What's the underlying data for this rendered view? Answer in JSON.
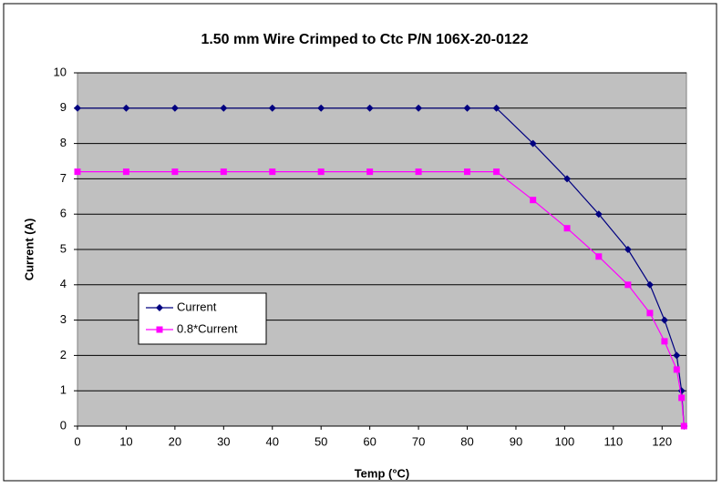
{
  "chart_data": {
    "type": "line",
    "title": "1.50 mm Wire Crimped to Ctc P/N 106X-20-0122",
    "x_label": "Temp (°C)",
    "y_label": "Current (A)",
    "x": [
      0,
      10,
      20,
      30,
      40,
      50,
      60,
      70,
      80,
      86,
      93.5,
      100.5,
      107,
      113,
      117.5,
      120.5,
      123,
      124,
      124.5
    ],
    "series": [
      {
        "name": "Current",
        "color": "#000080",
        "marker": "diamond",
        "values": [
          9,
          9,
          9,
          9,
          9,
          9,
          9,
          9,
          9,
          9,
          8,
          7,
          6,
          5,
          4,
          3,
          2,
          1,
          0
        ]
      },
      {
        "name": "0.8*Current",
        "color": "#ff00ff",
        "marker": "square",
        "values": [
          7.2,
          7.2,
          7.2,
          7.2,
          7.2,
          7.2,
          7.2,
          7.2,
          7.2,
          7.2,
          6.4,
          5.6,
          4.8,
          4,
          3.2,
          2.4,
          1.6,
          0.8,
          0
        ]
      }
    ],
    "xlim": [
      0,
      125
    ],
    "xticks": [
      0,
      10,
      20,
      30,
      40,
      50,
      60,
      70,
      80,
      90,
      100,
      110,
      120
    ],
    "ylim": [
      0,
      10
    ],
    "yticks": [
      0,
      1,
      2,
      3,
      4,
      5,
      6,
      7,
      8,
      9,
      10
    ],
    "grid": true,
    "legend": "lower left"
  }
}
